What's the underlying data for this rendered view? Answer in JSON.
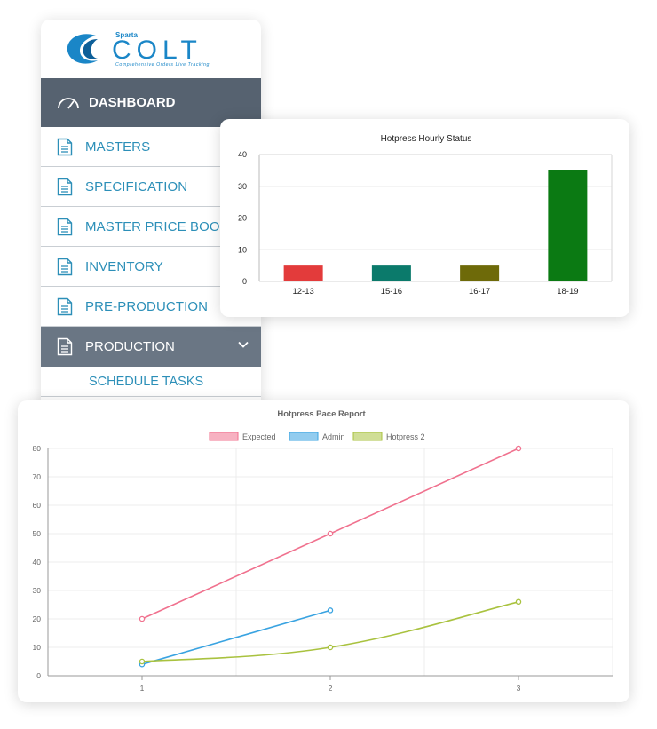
{
  "brand": {
    "small_text": "Sparta",
    "name": "COLT",
    "tagline": "Comprehensive Orders Live Tracking",
    "color": "#1a86c7"
  },
  "sidebar": {
    "dashboard_label": "DASHBOARD",
    "items": [
      {
        "label": "MASTERS",
        "icon": "document-icon"
      },
      {
        "label": "SPECIFICATION",
        "icon": "document-icon"
      },
      {
        "label": "MASTER PRICE BOOK",
        "icon": "document-icon"
      },
      {
        "label": "INVENTORY",
        "icon": "document-icon"
      },
      {
        "label": "PRE-PRODUCTION",
        "icon": "document-icon"
      }
    ],
    "production_label": "PRODUCTION",
    "production_sub_items": [
      {
        "label": "SCHEDULE TASKS"
      }
    ],
    "colors": {
      "dashboard_bg": "#566270",
      "production_bg": "#6a7684",
      "link": "#2c8fb8"
    }
  },
  "chart_data": [
    {
      "type": "bar",
      "title": "Hotpress Hourly Status",
      "categories": [
        "12-13",
        "15-16",
        "16-17",
        "18-19"
      ],
      "values": [
        5,
        5,
        5,
        35
      ],
      "colors": [
        "#e33b3b",
        "#0b7a6b",
        "#6e6a09",
        "#0b7a13"
      ],
      "ylim": [
        0,
        40
      ],
      "yticks": [
        0,
        10,
        20,
        30,
        40
      ],
      "grid": true,
      "legend": "none"
    },
    {
      "type": "line",
      "title": "Hotpress Pace Report",
      "x": [
        1,
        2,
        3
      ],
      "ylim": [
        0,
        80
      ],
      "yticks": [
        0,
        10,
        20,
        30,
        40,
        50,
        60,
        70,
        80
      ],
      "grid": true,
      "legend": "top-center",
      "series": [
        {
          "name": "Expected",
          "values": [
            20,
            50,
            80
          ],
          "color": "#f0718e",
          "smooth": false
        },
        {
          "name": "Admin",
          "values": [
            4,
            23,
            null
          ],
          "color": "#39a3e1",
          "smooth": false
        },
        {
          "name": "Hotpress 2",
          "values": [
            5,
            10,
            26
          ],
          "color": "#a9c23f",
          "smooth": true
        }
      ]
    }
  ]
}
